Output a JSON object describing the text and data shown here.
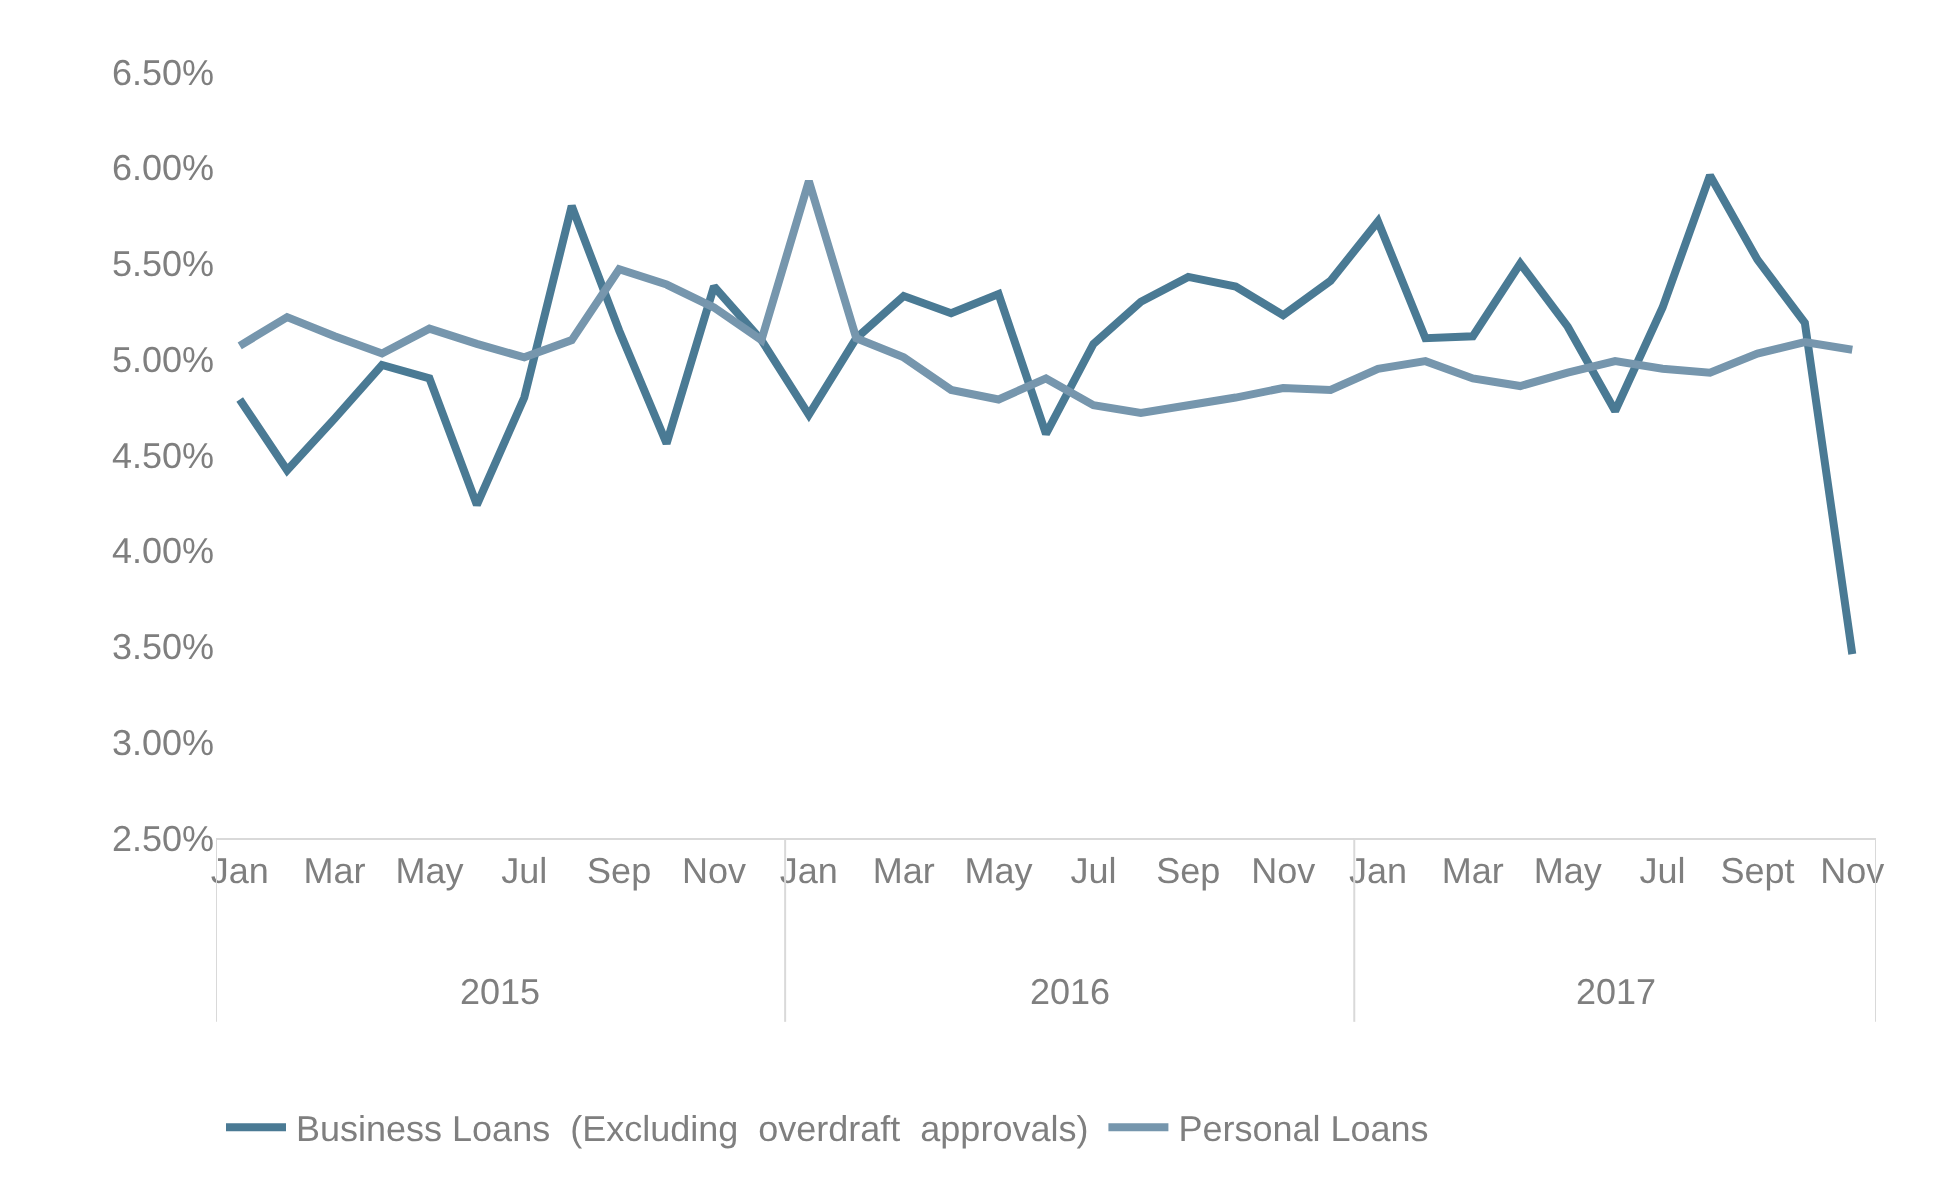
{
  "chart_data": {
    "type": "line",
    "categories": [
      "Jan",
      null,
      "Mar",
      null,
      "May",
      null,
      "Jul",
      null,
      "Sep",
      null,
      "Nov",
      null,
      "Jan",
      null,
      "Mar",
      null,
      "May",
      null,
      "Jul",
      null,
      "Sep",
      null,
      "Nov",
      null,
      "Jan",
      null,
      "Mar",
      null,
      "May",
      null,
      "Jul",
      null,
      "Sept",
      null,
      "Nov"
    ],
    "annotations": [
      "2015",
      "2016",
      "2017"
    ],
    "series": [
      {
        "name": "Business Loans  (Excluding  overdraft  approvals)",
        "color": "#4a7a94",
        "values": [
          4.79,
          4.42,
          4.69,
          4.97,
          4.9,
          4.24,
          4.8,
          5.8,
          5.15,
          4.56,
          5.38,
          5.1,
          4.71,
          5.11,
          5.33,
          5.24,
          5.34,
          4.61,
          5.08,
          5.3,
          5.43,
          5.38,
          5.23,
          5.41,
          5.72,
          5.11,
          5.12,
          5.5,
          5.17,
          4.73,
          5.27,
          5.96,
          5.52,
          5.19,
          3.46
        ]
      },
      {
        "name": "Personal Loans",
        "color": "#7696ad",
        "values": [
          5.07,
          5.22,
          5.12,
          5.03,
          5.16,
          5.08,
          5.01,
          5.1,
          5.47,
          5.39,
          5.27,
          5.1,
          5.93,
          5.11,
          5.01,
          4.84,
          4.79,
          4.9,
          4.76,
          4.72,
          4.76,
          4.8,
          4.85,
          4.84,
          4.95,
          4.99,
          4.9,
          4.86,
          4.93,
          4.99,
          4.95,
          4.93,
          5.03,
          5.09,
          5.05
        ]
      }
    ],
    "ylim": [
      2.5,
      6.5
    ],
    "yticks": [
      {
        "value": 2.5,
        "label": "2.50%"
      },
      {
        "value": 3.0,
        "label": "3.00%"
      },
      {
        "value": 3.5,
        "label": "3.50%"
      },
      {
        "value": 4.0,
        "label": "4.00%"
      },
      {
        "value": 4.5,
        "label": "4.50%"
      },
      {
        "value": 5.0,
        "label": "5.00%"
      },
      {
        "value": 5.5,
        "label": "5.50%"
      },
      {
        "value": 6.0,
        "label": "6.00%"
      },
      {
        "value": 6.5,
        "label": "6.50%"
      }
    ],
    "legend": "bottom",
    "marker": "none",
    "line_style": "solid"
  }
}
